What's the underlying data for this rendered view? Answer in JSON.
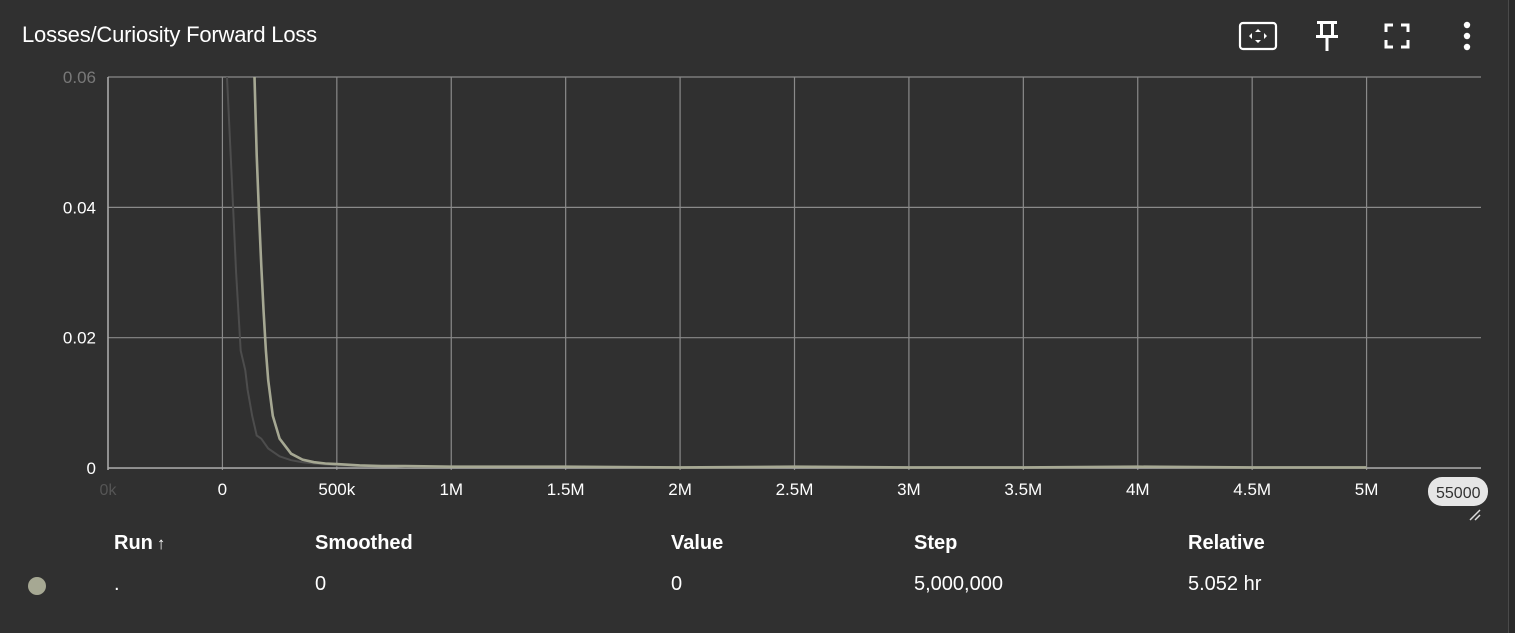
{
  "card": {
    "title": "Losses/Curiosity Forward Loss",
    "toolbar": [
      {
        "icon": "fit-domain-icon",
        "label": "Fit domain to data"
      },
      {
        "icon": "pin-icon",
        "label": "Pin card"
      },
      {
        "icon": "fullscreen-icon",
        "label": "Toggle full size"
      },
      {
        "icon": "more-vert-icon",
        "label": "More"
      }
    ]
  },
  "chart_data": {
    "type": "line",
    "title": "Losses/Curiosity Forward Loss",
    "xlabel": "",
    "ylabel": "",
    "xlim": [
      -500000,
      5500000
    ],
    "ylim": [
      -0.0003,
      0.06
    ],
    "x_ticks": [
      "0k",
      "0",
      "500k",
      "1M",
      "1.5M",
      "2M",
      "2.5M",
      "3M",
      "3.5M",
      "4M",
      "4.5M",
      "5M"
    ],
    "x_tick_values": [
      -500000,
      0,
      500000,
      1000000,
      1500000,
      2000000,
      2500000,
      3000000,
      3500000,
      4000000,
      4500000,
      5000000
    ],
    "x_end_label": "55000",
    "y_ticks": [
      "0",
      "0.02",
      "0.04",
      "0.06"
    ],
    "y_tick_values": [
      0,
      0.02,
      0.04,
      0.06
    ],
    "grid": true,
    "series": [
      {
        "color": "#4d4d4d",
        "values_kind": "raw",
        "x": [
          20000,
          40000,
          60000,
          80000,
          100000,
          110000,
          130000,
          150000,
          170000,
          200000,
          250000,
          300000,
          350000,
          400000,
          500000,
          600000,
          700000,
          800000,
          1000000,
          1500000,
          2000000,
          2500000,
          3000000,
          3500000,
          4000000,
          4500000,
          5000000
        ],
        "y": [
          0.06,
          0.045,
          0.03,
          0.018,
          0.015,
          0.012,
          0.008,
          0.005,
          0.0045,
          0.003,
          0.0018,
          0.0012,
          0.0009,
          0.0007,
          0.0004,
          0.0003,
          0.0003,
          0.0002,
          0.0002,
          0.0002,
          0.0001,
          0.0002,
          0.0001,
          0.0001,
          0.0002,
          0.0001,
          0.0001
        ]
      },
      {
        "color": "#a6a893",
        "values_kind": "smoothed",
        "x": [
          140000,
          150000,
          160000,
          170000,
          180000,
          190000,
          200000,
          220000,
          250000,
          300000,
          350000,
          400000,
          450000,
          500000,
          600000,
          700000,
          800000,
          1000000,
          1500000,
          2000000,
          2500000,
          3000000,
          3500000,
          4000000,
          4500000,
          5000000
        ],
        "y": [
          0.06,
          0.048,
          0.039,
          0.031,
          0.024,
          0.018,
          0.0135,
          0.008,
          0.0045,
          0.0022,
          0.0013,
          0.0009,
          0.0007,
          0.0006,
          0.0004,
          0.0003,
          0.0003,
          0.0002,
          0.0002,
          0.0001,
          0.0002,
          0.0001,
          0.0001,
          0.0002,
          0.0001,
          0.0001
        ]
      }
    ]
  },
  "table": {
    "headers": {
      "run": "Run",
      "sort": "↑",
      "smoothed": "Smoothed",
      "value": "Value",
      "step": "Step",
      "relative": "Relative"
    },
    "row": {
      "dot_color": "#a6a893",
      "run": ".",
      "smoothed": "0",
      "value": "0",
      "step": "5,000,000",
      "relative": "5.052 hr"
    }
  }
}
